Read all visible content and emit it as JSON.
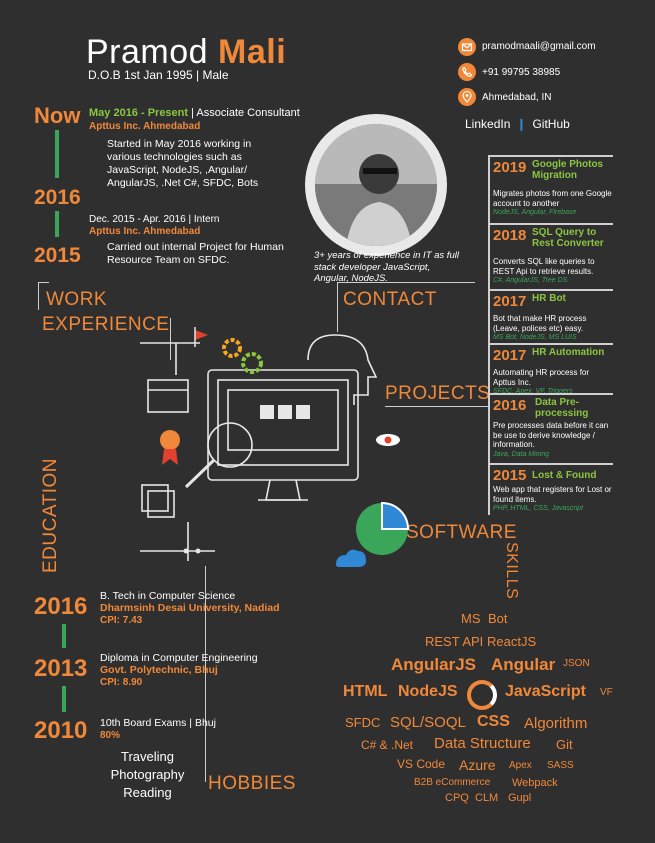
{
  "header": {
    "first_name": "Pramod",
    "last_name": "Mali",
    "dob": "D.O.B 1st Jan 1995 | Male"
  },
  "contact": {
    "email": "pramodmaali@gmail.com",
    "phone": "+91 99795 38985",
    "location": "Ahmedabad, IN",
    "linkedin": "LinkedIn",
    "github": "GitHub",
    "email_icon": "envelope-icon",
    "phone_icon": "phone-icon",
    "location_icon": "map-pin-icon"
  },
  "work": {
    "now_label": "Now",
    "y2016": "2016",
    "y2015": "2015",
    "job1_period": "May 2016 - Present",
    "job1_title": " | Associate Consultant",
    "job1_org": "Apttus Inc. Ahmedabad",
    "job1_desc": "Started in May 2016 working in various technologies such as JavaScript, NodeJS, ,Angular/ AngularJS, .Net C#, SFDC, Bots",
    "job2_period": "Dec. 2015 - Apr. 2016 | Intern",
    "job2_org": "Apttus Inc. Ahmedabad",
    "job2_desc": "Carried out internal Project for Human Resource Team on SFDC."
  },
  "summary": "3+ years of experience in IT as full stack developer JavaScript, Angular, NodeJS.",
  "sections": {
    "work_experience_1": "WORK",
    "work_experience_2": "EXPERIENCE",
    "contact": "CONTACT",
    "projects": "PROJECTS",
    "education": "EDUCATION",
    "software": "SOFTWARE",
    "skills": "SKILLS",
    "hobbies": "HOBBIES"
  },
  "projects": [
    {
      "year": "2019",
      "title": "Google Photos Migration",
      "desc": "Migrates photos from one Google account to another",
      "tech": "NodeJS, Angular, Firebase"
    },
    {
      "year": "2018",
      "title": "SQL Query to Rest Converter",
      "desc": "Converts SQL like queries to REST Api to retrieve results.",
      "tech": "C#, AngularJS, Tree DS"
    },
    {
      "year": "2017",
      "title": "HR Bot",
      "desc": "Bot that make HR process (Leave, polices etc) easy.",
      "tech": "MS Bot, NodeJS, MS LUIS"
    },
    {
      "year": "2017",
      "title": "HR Automation",
      "desc": "Automating HR process for Apttus Inc.",
      "tech": "SFDC, Apex, VF, Triggers"
    },
    {
      "year": "2016",
      "title": "Data Pre-processing",
      "desc": "Pre processes data before it can be use to derive knowledge / information.",
      "tech": "Java, Data Mining"
    },
    {
      "year": "2015",
      "title": "Lost & Found",
      "desc": "Web app that registers for Lost or found items.",
      "tech": "PHP, HTML, CSS, Javascript"
    }
  ],
  "education": [
    {
      "year": "2016",
      "degree": "B. Tech in Computer Science",
      "school": "Dharmsinh Desai University, Nadiad",
      "score": "CPI: 7.43"
    },
    {
      "year": "2013",
      "degree": "Diploma in Computer Engineering",
      "school": "Govt. Polytechnic, Bhuj",
      "score": "CPI: 8.90"
    },
    {
      "year": "2010",
      "degree": "10th Board Exams | Bhuj",
      "school": "",
      "score": "80%"
    }
  ],
  "hobbies": [
    "Traveling",
    "Photography",
    "Reading"
  ],
  "skills": {
    "ms": "MS",
    "bot": "Bot",
    "restapi": "REST API",
    "reactjs": "ReactJS",
    "angularjs": "AngularJS",
    "angular": "Angular",
    "json": "JSON",
    "html": "HTML",
    "nodejs": "NodeJS",
    "javascript": "JavaScript",
    "vf": "VF",
    "sfdc": "SFDC",
    "sql": "SQL/SOQL",
    "css": "CSS",
    "algorithm": "Algorithm",
    "csharp": "C# & .Net",
    "ds": "Data Structure",
    "git": "Git",
    "vscode": "VS Code",
    "azure": "Azure",
    "apex": "Apex",
    "sass": "SASS",
    "b2b": "B2B eCommerce",
    "webpack": "Webpack",
    "cpq": "CPQ",
    "clm": "CLM",
    "gupl": "Gupl"
  }
}
